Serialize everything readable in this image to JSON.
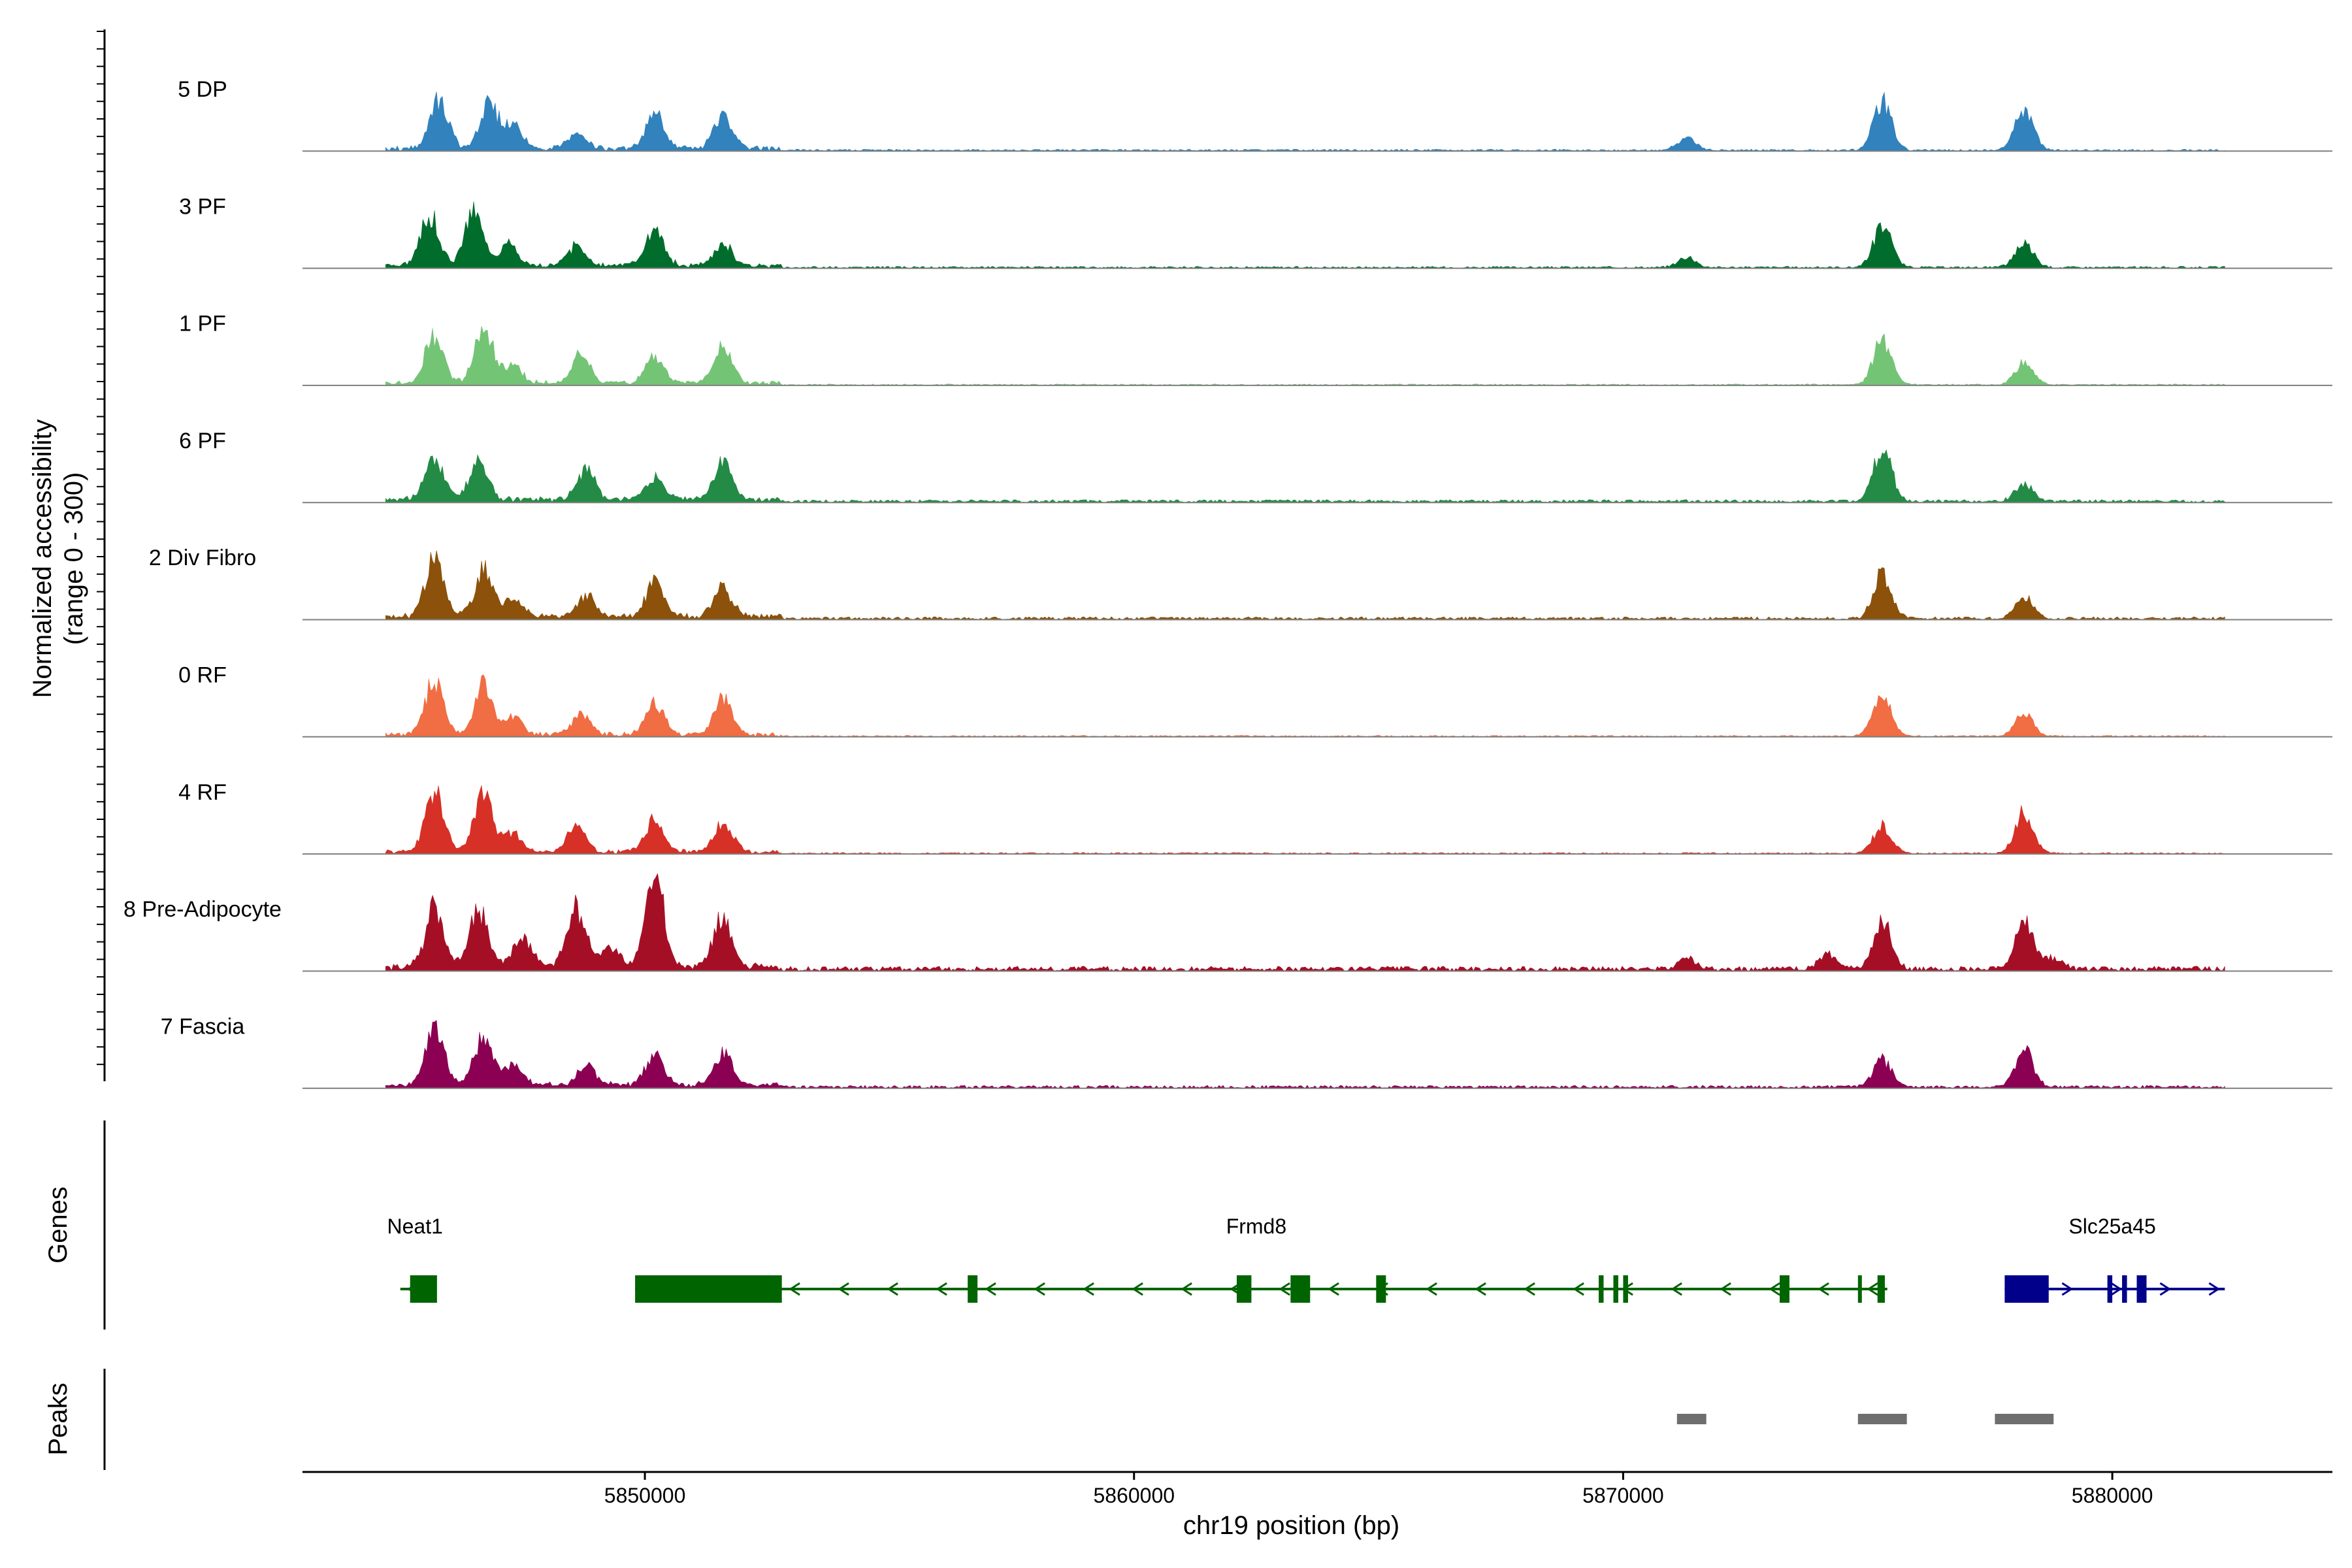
{
  "chart_data": {
    "type": "area",
    "region": "chr19",
    "xlabel": "chr19 position (bp)",
    "x_range": [
      5843000,
      5884500
    ],
    "x_ticks": [
      {
        "value": 5850000,
        "label": "5850000"
      },
      {
        "value": 5860000,
        "label": "5860000"
      },
      {
        "value": 5870000,
        "label": "5870000"
      },
      {
        "value": 5880000,
        "label": "5880000"
      }
    ],
    "ylabel_line1": "Normalized accessibility",
    "ylabel_line2": "(range 0 - 300)",
    "y_range": [
      0,
      300
    ],
    "tracks": [
      {
        "name": "5 DP",
        "color": "#3182BD",
        "noise": 0.02,
        "peaks": [
          [
            5845800,
            0.5
          ],
          [
            5846800,
            0.45
          ],
          [
            5847300,
            0.25
          ],
          [
            5848600,
            0.15
          ],
          [
            5850200,
            0.35
          ],
          [
            5851600,
            0.33
          ],
          [
            5871300,
            0.12
          ],
          [
            5875300,
            0.5
          ],
          [
            5878200,
            0.42
          ]
        ]
      },
      {
        "name": "3 PF",
        "color": "#006D2C",
        "noise": 0.02,
        "peaks": [
          [
            5845600,
            0.52
          ],
          [
            5846500,
            0.55
          ],
          [
            5847200,
            0.22
          ],
          [
            5848600,
            0.2
          ],
          [
            5850200,
            0.36
          ],
          [
            5851600,
            0.22
          ],
          [
            5871300,
            0.1
          ],
          [
            5875300,
            0.42
          ],
          [
            5878200,
            0.25
          ]
        ]
      },
      {
        "name": "1 PF",
        "color": "#74C476",
        "noise": 0.015,
        "peaks": [
          [
            5845700,
            0.5
          ],
          [
            5846700,
            0.58
          ],
          [
            5847300,
            0.18
          ],
          [
            5848700,
            0.3
          ],
          [
            5850200,
            0.26
          ],
          [
            5851600,
            0.38
          ],
          [
            5875300,
            0.45
          ],
          [
            5878200,
            0.22
          ]
        ]
      },
      {
        "name": "6 PF",
        "color": "#238B45",
        "noise": 0.03,
        "peaks": [
          [
            5845700,
            0.42
          ],
          [
            5846600,
            0.38
          ],
          [
            5848800,
            0.3
          ],
          [
            5850200,
            0.22
          ],
          [
            5851600,
            0.38
          ],
          [
            5875300,
            0.55
          ],
          [
            5878200,
            0.17
          ]
        ]
      },
      {
        "name": "2 Div Fibro",
        "color": "#8C510A",
        "noise": 0.03,
        "peaks": [
          [
            5845700,
            0.58
          ],
          [
            5846700,
            0.48
          ],
          [
            5847300,
            0.18
          ],
          [
            5848800,
            0.22
          ],
          [
            5850200,
            0.33
          ],
          [
            5851600,
            0.3
          ],
          [
            5875300,
            0.45
          ],
          [
            5878200,
            0.22
          ]
        ]
      },
      {
        "name": "0 RF",
        "color": "#F16D43",
        "noise": 0.015,
        "peaks": [
          [
            5845700,
            0.55
          ],
          [
            5846700,
            0.5
          ],
          [
            5847300,
            0.2
          ],
          [
            5848700,
            0.2
          ],
          [
            5850200,
            0.32
          ],
          [
            5851600,
            0.36
          ],
          [
            5875300,
            0.42
          ],
          [
            5878200,
            0.24
          ]
        ]
      },
      {
        "name": "4 RF",
        "color": "#D73027",
        "noise": 0.015,
        "peaks": [
          [
            5845700,
            0.62
          ],
          [
            5846700,
            0.55
          ],
          [
            5847300,
            0.18
          ],
          [
            5848600,
            0.25
          ],
          [
            5850200,
            0.32
          ],
          [
            5851600,
            0.3
          ],
          [
            5875300,
            0.28
          ],
          [
            5878200,
            0.42
          ]
        ]
      },
      {
        "name": "8 Pre-Adipocyte",
        "color": "#A50F26",
        "noise": 0.05,
        "peaks": [
          [
            5845700,
            0.62
          ],
          [
            5846600,
            0.58
          ],
          [
            5847500,
            0.3
          ],
          [
            5848600,
            0.62
          ],
          [
            5849300,
            0.2
          ],
          [
            5850200,
            0.95
          ],
          [
            5851600,
            0.52
          ],
          [
            5871300,
            0.12
          ],
          [
            5874200,
            0.15
          ],
          [
            5875300,
            0.48
          ],
          [
            5878200,
            0.48
          ],
          [
            5878800,
            0.12
          ]
        ]
      },
      {
        "name": "7 Fascia",
        "color": "#8B0052",
        "noise": 0.03,
        "peaks": [
          [
            5845700,
            0.58
          ],
          [
            5846700,
            0.5
          ],
          [
            5847300,
            0.22
          ],
          [
            5848800,
            0.2
          ],
          [
            5850200,
            0.3
          ],
          [
            5851600,
            0.33
          ],
          [
            5875300,
            0.28
          ],
          [
            5878200,
            0.37
          ]
        ]
      }
    ],
    "genes_panel_label": "Genes",
    "genes": [
      {
        "name": "Neat1",
        "strand": "-",
        "color": "#006400",
        "start": 5845000,
        "end": 5845600,
        "label_pos": 5845300,
        "exons": [
          [
            5845200,
            5845750
          ]
        ]
      },
      {
        "name": "Frmd8",
        "strand": "-",
        "color": "#006400",
        "start": 5849800,
        "end": 5875400,
        "label_pos": 5862500,
        "exons": [
          [
            5849800,
            5852800
          ],
          [
            5856600,
            5856800
          ],
          [
            5862100,
            5862400
          ],
          [
            5863200,
            5863600
          ],
          [
            5864950,
            5865150
          ],
          [
            5869500,
            5869600
          ],
          [
            5869800,
            5869900
          ],
          [
            5870000,
            5870100
          ],
          [
            5873200,
            5873400
          ],
          [
            5874800,
            5874850
          ],
          [
            5875200,
            5875350
          ]
        ]
      },
      {
        "name": "Slc25a45",
        "strand": "+",
        "color": "#00008B",
        "start": 5877800,
        "end": 5882300,
        "label_pos": 5880000,
        "exons": [
          [
            5877800,
            5878700
          ],
          [
            5879900,
            5880000
          ],
          [
            5880200,
            5880300
          ],
          [
            5880500,
            5880700
          ]
        ]
      }
    ],
    "peaks_panel_label": "Peaks",
    "peak_color": "#6E6E6E",
    "peak_regions": [
      [
        5871100,
        5871700
      ],
      [
        5874800,
        5875800
      ],
      [
        5877600,
        5878800
      ]
    ]
  }
}
